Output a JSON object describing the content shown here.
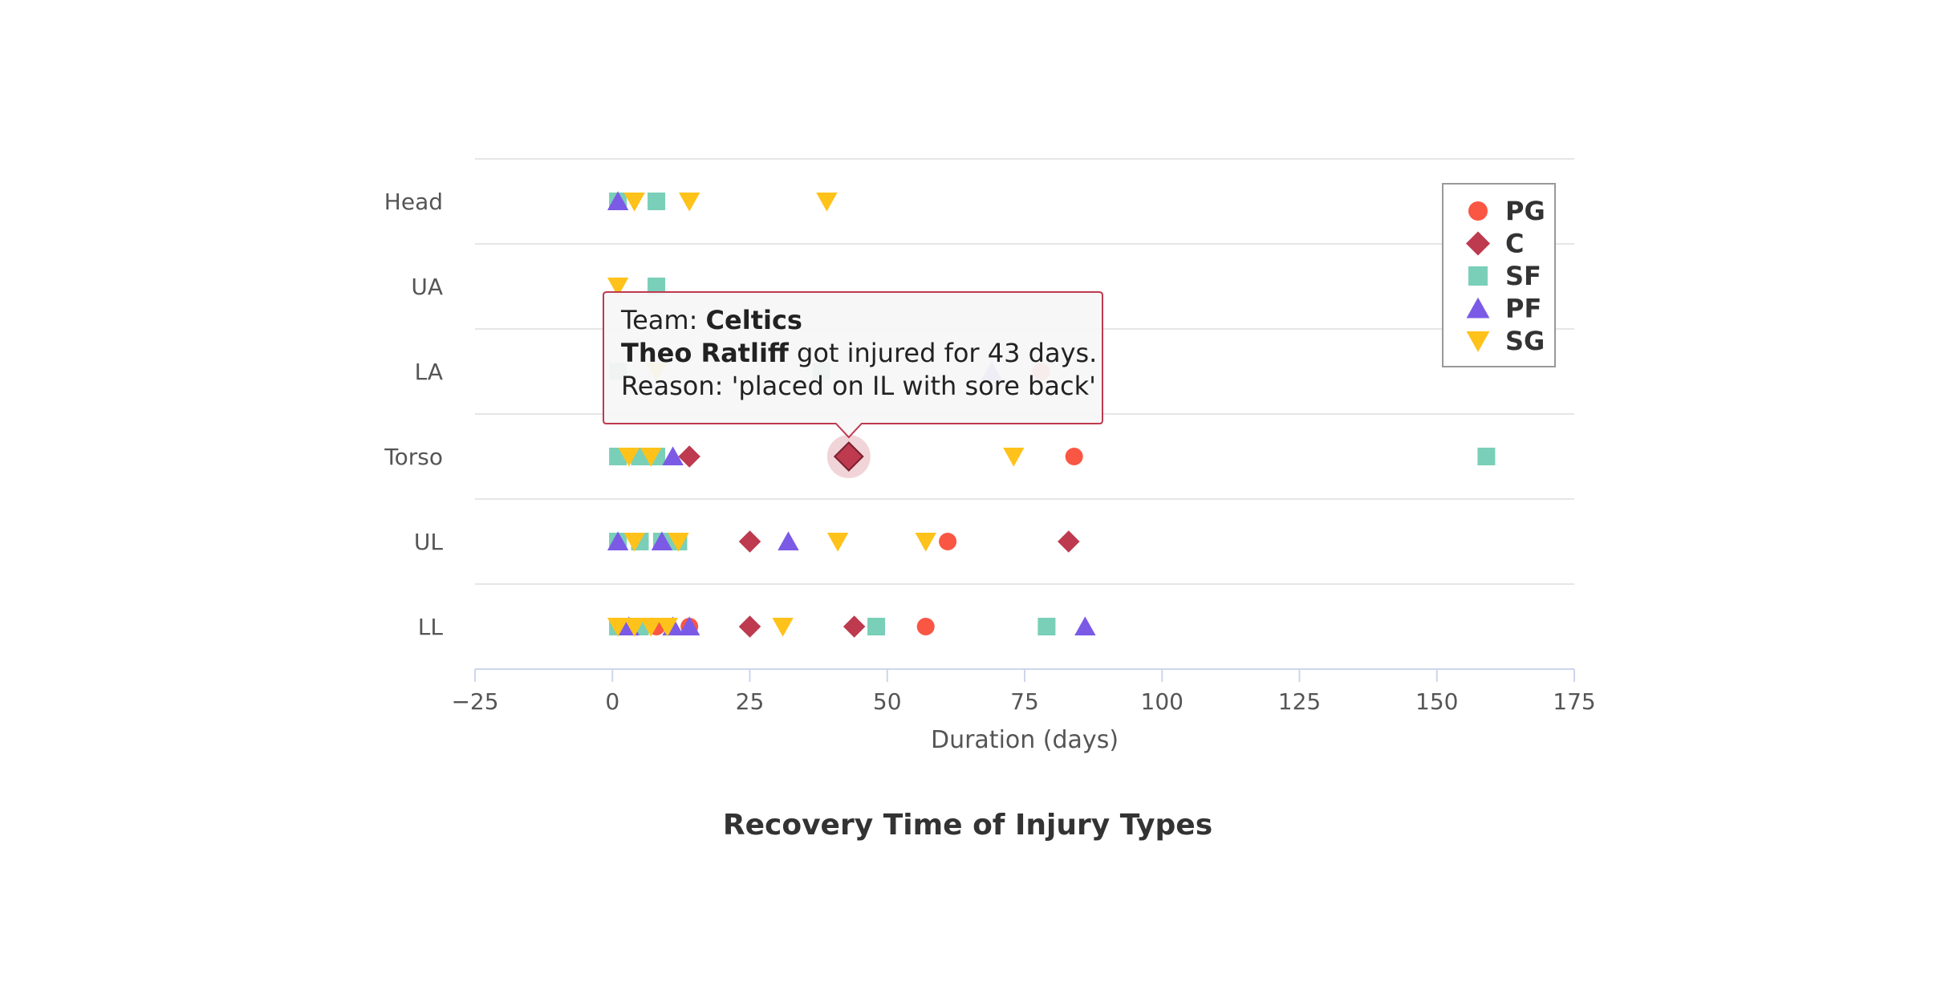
{
  "chart_data": {
    "type": "scatter",
    "title": "Recovery Time of Injury Types",
    "xlabel": "Duration (days)",
    "xlim": [
      -25,
      175
    ],
    "x_ticks": [
      -25,
      0,
      25,
      50,
      75,
      100,
      125,
      150,
      175
    ],
    "x_tick_labels": [
      "−25",
      "0",
      "25",
      "50",
      "75",
      "100",
      "125",
      "150",
      "175"
    ],
    "categories": [
      "Head",
      "UA",
      "LA",
      "Torso",
      "UL",
      "LL"
    ],
    "grid": true,
    "legend_position": "top-right",
    "series": [
      {
        "name": "PG",
        "marker": "circle",
        "color": "#fa5644",
        "points": [
          {
            "category": "LA",
            "x": 78
          },
          {
            "category": "Torso",
            "x": 84
          },
          {
            "category": "UL",
            "x": 61
          },
          {
            "category": "LL",
            "x": 8
          },
          {
            "category": "LL",
            "x": 14
          },
          {
            "category": "LL",
            "x": 57
          }
        ]
      },
      {
        "name": "C",
        "marker": "diamond",
        "color": "#bd3a4f",
        "points": [
          {
            "category": "Torso",
            "x": 14
          },
          {
            "category": "Torso",
            "x": 43
          },
          {
            "category": "UL",
            "x": 25
          },
          {
            "category": "UL",
            "x": 83
          },
          {
            "category": "LL",
            "x": 25
          },
          {
            "category": "LL",
            "x": 44
          }
        ]
      },
      {
        "name": "SF",
        "marker": "square",
        "color": "#7acfb8",
        "points": [
          {
            "category": "Head",
            "x": 1
          },
          {
            "category": "Head",
            "x": 8
          },
          {
            "category": "UA",
            "x": 8
          },
          {
            "category": "LA",
            "x": 1
          },
          {
            "category": "LA",
            "x": 38
          },
          {
            "category": "Torso",
            "x": 1
          },
          {
            "category": "Torso",
            "x": 5
          },
          {
            "category": "Torso",
            "x": 8
          },
          {
            "category": "Torso",
            "x": 159
          },
          {
            "category": "UL",
            "x": 1
          },
          {
            "category": "UL",
            "x": 5
          },
          {
            "category": "UL",
            "x": 9
          },
          {
            "category": "UL",
            "x": 12
          },
          {
            "category": "LL",
            "x": 1
          },
          {
            "category": "LL",
            "x": 5
          },
          {
            "category": "LL",
            "x": 48
          },
          {
            "category": "LL",
            "x": 79
          }
        ]
      },
      {
        "name": "PF",
        "marker": "triangle",
        "color": "#7b5ae6",
        "points": [
          {
            "category": "Head",
            "x": 1
          },
          {
            "category": "LA",
            "x": 69
          },
          {
            "category": "Torso",
            "x": 11
          },
          {
            "category": "UL",
            "x": 1
          },
          {
            "category": "UL",
            "x": 9
          },
          {
            "category": "UL",
            "x": 32
          },
          {
            "category": "LL",
            "x": 3
          },
          {
            "category": "LL",
            "x": 11
          },
          {
            "category": "LL",
            "x": 14
          },
          {
            "category": "LL",
            "x": 86
          }
        ]
      },
      {
        "name": "SG",
        "marker": "triangle-down",
        "color": "#ffc21a",
        "points": [
          {
            "category": "Head",
            "x": 4
          },
          {
            "category": "Head",
            "x": 14
          },
          {
            "category": "Head",
            "x": 39
          },
          {
            "category": "UA",
            "x": 1
          },
          {
            "category": "LA",
            "x": 8
          },
          {
            "category": "Torso",
            "x": 3
          },
          {
            "category": "Torso",
            "x": 7
          },
          {
            "category": "Torso",
            "x": 73
          },
          {
            "category": "UL",
            "x": 4
          },
          {
            "category": "UL",
            "x": 12
          },
          {
            "category": "UL",
            "x": 41
          },
          {
            "category": "UL",
            "x": 57
          },
          {
            "category": "LL",
            "x": 1
          },
          {
            "category": "LL",
            "x": 4
          },
          {
            "category": "LL",
            "x": 7
          },
          {
            "category": "LL",
            "x": 10
          },
          {
            "category": "LL",
            "x": 31
          }
        ]
      }
    ],
    "highlighted_point": {
      "series": "C",
      "category": "Torso",
      "x": 43
    }
  },
  "tooltip": {
    "team_prefix": "Team: ",
    "team": "Celtics",
    "player": "Theo Ratliff",
    "injury_suffix": " got injured for 43 days.",
    "reason": "Reason: 'placed on IL with sore back'",
    "border_color": "#bd3a4f"
  }
}
